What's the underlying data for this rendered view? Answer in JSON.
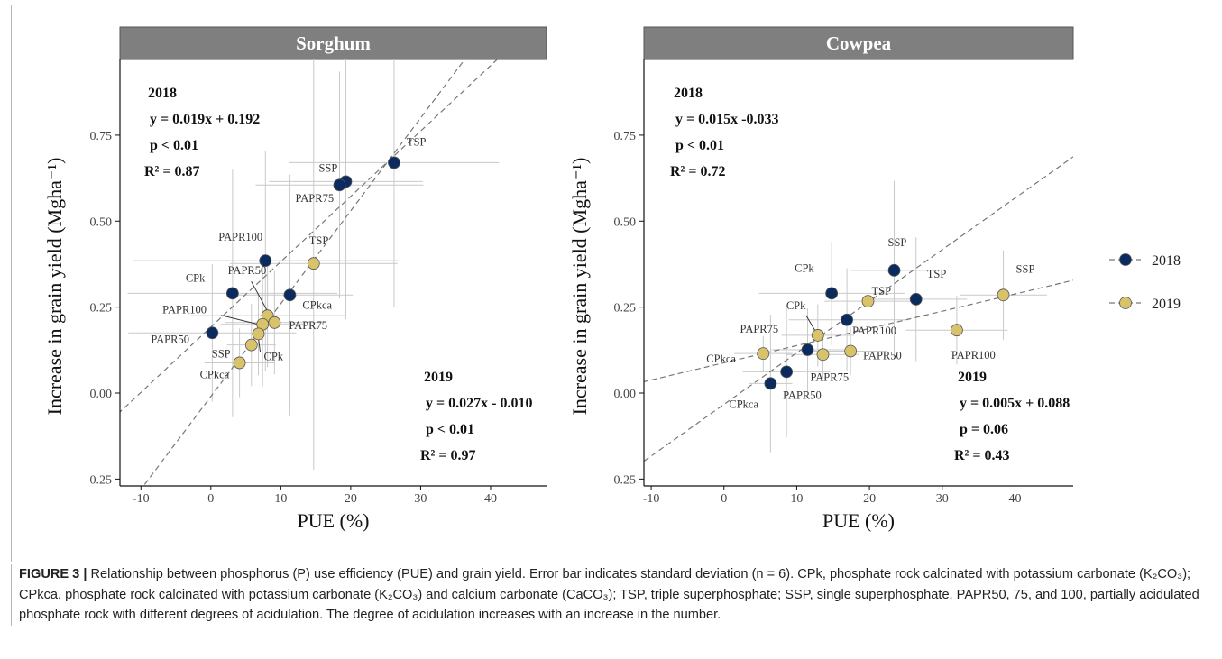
{
  "figure": {
    "caption_label": "FIGURE 3 |",
    "caption_text": "Relationship between phosphorus (P) use efficiency (PUE) and grain yield. Error bar indicates standard deviation (n = 6). CPk, phosphate rock calcinated with potassium carbonate (K₂CO₃); CPkca, phosphate rock calcinated with potassium carbonate (K₂CO₃) and calcium carbonate (CaCO₃); TSP, triple superphosphate; SSP, single superphosphate. PAPR50, 75, and 100, partially acidulated phosphate rock with different degrees of acidulation. The degree of acidulation increases with an increase in the number."
  },
  "legend": {
    "placement": "right",
    "entries": [
      {
        "label": "2018",
        "color": "#0b2a5e"
      },
      {
        "label": "2019",
        "color": "#d9c36a"
      }
    ]
  },
  "chart_data": [
    {
      "type": "scatter",
      "title": "Sorghum",
      "xlabel": "PUE (%)",
      "ylabel": "Increase in grain yield (Mgha⁻¹)",
      "xlim": [
        -13,
        48
      ],
      "ylim": [
        -0.27,
        0.97
      ],
      "xticks": [
        "-10",
        "0",
        "10",
        "20",
        "30",
        "40"
      ],
      "yticks": [
        "-0.25",
        "0.00",
        "0.25",
        "0.50",
        "0.75"
      ],
      "series": [
        {
          "name": "2018",
          "equation_lines": [
            "2018",
            "y = 0.019x + 0.192",
            "p < 0.01",
            "R² = 0.87"
          ],
          "fit": {
            "slope": 0.019,
            "intercept": 0.192
          },
          "points": [
            {
              "label": "TSP",
              "x": 26.2,
              "y": 0.67,
              "xerr": 15,
              "yerr": 0.42
            },
            {
              "label": "SSP",
              "x": 19.3,
              "y": 0.615,
              "xerr": 11,
              "yerr": 0.4
            },
            {
              "label": "PAPR75",
              "x": 18.4,
              "y": 0.605,
              "xerr": 12,
              "yerr": 0.33
            },
            {
              "label": "PAPR100",
              "x": 7.8,
              "y": 0.385,
              "xerr": 19,
              "yerr": 0.32
            },
            {
              "label": "CPkca",
              "x": 11.3,
              "y": 0.285,
              "xerr": 9,
              "yerr": 0.35
            },
            {
              "label": "CPk",
              "x": 3.1,
              "y": 0.29,
              "xerr": 15,
              "yerr": 0.36
            },
            {
              "label": "PAPR50",
              "x": 0.2,
              "y": 0.175,
              "xerr": 12,
              "yerr": 0.2
            }
          ]
        },
        {
          "name": "2019",
          "equation_lines": [
            "2019",
            "y = 0.027x - 0.010",
            "p < 0.01",
            "R² = 0.97"
          ],
          "fit": {
            "slope": 0.027,
            "intercept": -0.01
          },
          "points": [
            {
              "label": "TSP",
              "x": 14.7,
              "y": 0.377,
              "xerr": 12,
              "yerr": 0.6
            },
            {
              "label": "PAPR50",
              "x": 8.1,
              "y": 0.225,
              "xerr": 11,
              "yerr": 0.15
            },
            {
              "label": "PAPR75",
              "x": 9.1,
              "y": 0.205,
              "xerr": 7,
              "yerr": 0.15
            },
            {
              "label": "PAPR100",
              "x": 7.4,
              "y": 0.2,
              "xerr": 6,
              "yerr": 0.18
            },
            {
              "label": "CPk",
              "x": 6.8,
              "y": 0.172,
              "xerr": 4,
              "yerr": 0.12
            },
            {
              "label": "SSP",
              "x": 5.8,
              "y": 0.14,
              "xerr": 3.5,
              "yerr": 0.12
            },
            {
              "label": "CPkca",
              "x": 4.1,
              "y": 0.088,
              "xerr": 5,
              "yerr": 0.1
            }
          ]
        }
      ]
    },
    {
      "type": "scatter",
      "title": "Cowpea",
      "xlabel": "PUE (%)",
      "ylabel": "Increase in grain yield (Mgha⁻¹)",
      "xlim": [
        -11,
        48
      ],
      "ylim": [
        -0.27,
        0.97
      ],
      "xticks": [
        "-10",
        "0",
        "10",
        "20",
        "30",
        "40"
      ],
      "yticks": [
        "-0.25",
        "0.00",
        "0.25",
        "0.50",
        "0.75"
      ],
      "series": [
        {
          "name": "2018",
          "equation_lines": [
            "2018",
            "y = 0.015x -0.033",
            "p < 0.01",
            "R² = 0.72"
          ],
          "fit": {
            "slope": 0.015,
            "intercept": -0.033
          },
          "points": [
            {
              "label": "SSP",
              "x": 23.4,
              "y": 0.357,
              "xerr": 6,
              "yerr": 0.26
            },
            {
              "label": "CPk",
              "x": 14.8,
              "y": 0.29,
              "xerr": 10,
              "yerr": 0.15
            },
            {
              "label": "TSP",
              "x": 26.4,
              "y": 0.273,
              "xerr": 7,
              "yerr": 0.18
            },
            {
              "label": "PAPR100",
              "x": 16.9,
              "y": 0.213,
              "xerr": 8,
              "yerr": 0.15
            },
            {
              "label": "PAPR75",
              "x": 11.5,
              "y": 0.126,
              "xerr": 5,
              "yerr": 0.12
            },
            {
              "label": "PAPR50",
              "x": 8.6,
              "y": 0.062,
              "xerr": 6,
              "yerr": 0.19
            },
            {
              "label": "CPkca",
              "x": 6.4,
              "y": 0.028,
              "xerr": 3,
              "yerr": 0.2
            }
          ]
        },
        {
          "name": "2019",
          "equation_lines": [
            "2019",
            "y = 0.005x + 0.088",
            "p = 0.06",
            "R² = 0.43"
          ],
          "fit": {
            "slope": 0.005,
            "intercept": 0.088
          },
          "points": [
            {
              "label": "SSP",
              "x": 38.4,
              "y": 0.285,
              "xerr": 6,
              "yerr": 0.13
            },
            {
              "label": "TSP",
              "x": 19.8,
              "y": 0.267,
              "xerr": 6,
              "yerr": 0.09
            },
            {
              "label": "PAPR100",
              "x": 32,
              "y": 0.183,
              "xerr": 7,
              "yerr": 0.1
            },
            {
              "label": "CPk",
              "x": 12.9,
              "y": 0.168,
              "xerr": 5,
              "yerr": 0.09
            },
            {
              "label": "PAPR50",
              "x": 17.4,
              "y": 0.122,
              "xerr": 5,
              "yerr": 0.07
            },
            {
              "label": "PAPR75",
              "x": 13.6,
              "y": 0.112,
              "xerr": 5,
              "yerr": 0.07
            },
            {
              "label": "CPkca",
              "x": 5.4,
              "y": 0.115,
              "xerr": 4,
              "yerr": 0.05
            }
          ]
        }
      ]
    }
  ]
}
